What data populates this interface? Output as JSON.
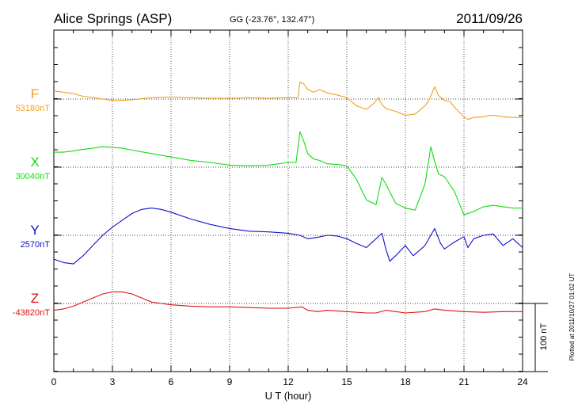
{
  "chart_data": {
    "type": "line",
    "title": "Alice Springs (ASP)",
    "subtitle": "GG (-23.76°, 132.47°)",
    "date": "2011/09/26",
    "xlabel": "U T (hour)",
    "xlim": [
      0,
      24
    ],
    "xticks": [
      "0",
      "3",
      "6",
      "9",
      "12",
      "15",
      "18",
      "21",
      "24"
    ],
    "grid": true,
    "scale_bar": "100 nT",
    "footnote": "Plotted at 2011/10/27 01:02 UT",
    "series": [
      {
        "name": "F",
        "baseline_label": "53180nT",
        "color": "#f0a020",
        "x": [
          0,
          0.5,
          1,
          1.5,
          2,
          2.5,
          3,
          3.5,
          4,
          5,
          6,
          7,
          8,
          9,
          10,
          11,
          12,
          12.5,
          12.6,
          12.8,
          13,
          13.3,
          13.6,
          14,
          14.5,
          15,
          15.5,
          16,
          16.4,
          16.6,
          16.8,
          17,
          17.5,
          18,
          18.5,
          19,
          19.2,
          19.5,
          19.7,
          20,
          20.3,
          20.6,
          21,
          21.2,
          21.5,
          22,
          22.3,
          22.6,
          23,
          23.5,
          24
        ],
        "values": [
          12,
          10,
          8,
          4,
          2,
          0,
          -2,
          -2,
          -1,
          2,
          3,
          2,
          1,
          1,
          2,
          1,
          2,
          2,
          25,
          22,
          14,
          10,
          14,
          9,
          6,
          2,
          -10,
          -15,
          -6,
          2,
          -8,
          -14,
          -18,
          -24,
          -22,
          -10,
          -2,
          18,
          5,
          -2,
          -4,
          -15,
          -26,
          -30,
          -27,
          -26,
          -24,
          -24,
          -26,
          -27,
          -27
        ]
      },
      {
        "name": "X",
        "baseline_label": "30040nT",
        "color": "#10dd10",
        "x": [
          0,
          0.5,
          1,
          1.5,
          2,
          2.5,
          3,
          3.5,
          4,
          5,
          6,
          7,
          8,
          9,
          10,
          11,
          12,
          12.4,
          12.6,
          12.8,
          13,
          13.3,
          13.6,
          14,
          14.5,
          15,
          15.5,
          16,
          16.5,
          16.8,
          17,
          17.5,
          18,
          18.5,
          19,
          19.3,
          19.5,
          19.7,
          20,
          20.5,
          21,
          21.5,
          22,
          22.5,
          23,
          23.5,
          24
        ],
        "values": [
          22,
          22,
          24,
          26,
          28,
          30,
          29,
          28,
          25,
          20,
          15,
          10,
          7,
          3,
          2,
          3,
          7,
          7,
          52,
          38,
          20,
          12,
          10,
          5,
          4,
          2,
          -18,
          -48,
          -55,
          -15,
          -25,
          -53,
          -60,
          -63,
          -25,
          30,
          8,
          -10,
          -14,
          -35,
          -70,
          -65,
          -58,
          -56,
          -58,
          -60,
          -60
        ]
      },
      {
        "name": "Y",
        "baseline_label": "2570nT",
        "color": "#1010cc",
        "x": [
          0,
          0.5,
          1,
          1.5,
          2,
          2.5,
          3,
          3.5,
          4,
          4.5,
          5,
          5.5,
          6,
          7,
          8,
          9,
          10,
          11,
          12,
          12.6,
          13,
          13.5,
          14,
          14.5,
          15,
          15.5,
          16,
          16.5,
          16.8,
          17,
          17.2,
          17.5,
          18,
          18.4,
          19,
          19.5,
          19.8,
          20,
          20.5,
          21,
          21.2,
          21.5,
          22,
          22.5,
          23,
          23.5,
          24
        ],
        "values": [
          -35,
          -40,
          -42,
          -30,
          -15,
          0,
          12,
          22,
          32,
          38,
          40,
          38,
          34,
          24,
          16,
          10,
          6,
          5,
          3,
          0,
          -5,
          -3,
          0,
          -1,
          -5,
          -12,
          -18,
          -5,
          3,
          -20,
          -38,
          -30,
          -15,
          -30,
          -15,
          10,
          -12,
          -20,
          -10,
          -2,
          -18,
          -5,
          0,
          2,
          -15,
          -5,
          -18
        ]
      },
      {
        "name": "Z",
        "baseline_label": "-43820nT",
        "color": "#e01010",
        "x": [
          0,
          0.5,
          1,
          1.5,
          2,
          2.5,
          3,
          3.5,
          4,
          4.5,
          5,
          5.5,
          6,
          7,
          8,
          9,
          10,
          11,
          12,
          12.7,
          13,
          13.5,
          14,
          15,
          16,
          16.5,
          17,
          18,
          19,
          19.5,
          20,
          21,
          22,
          23,
          24
        ],
        "values": [
          -10,
          -8,
          -4,
          2,
          8,
          14,
          17,
          17,
          14,
          8,
          2,
          0,
          -2,
          -4,
          -5,
          -5,
          -6,
          -7,
          -7,
          -5,
          -10,
          -12,
          -10,
          -12,
          -14,
          -14,
          -10,
          -14,
          -12,
          -8,
          -10,
          -12,
          -13,
          -12,
          -12
        ]
      }
    ]
  }
}
